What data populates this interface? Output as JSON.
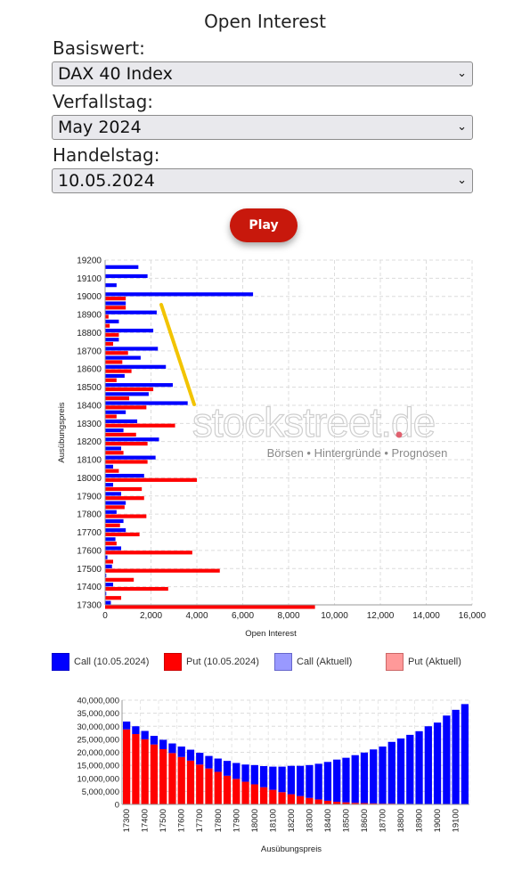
{
  "page": {
    "title": "Open Interest"
  },
  "form": {
    "underlying": {
      "label": "Basiswert:",
      "value": "DAX 40 Index"
    },
    "expiry": {
      "label": "Verfallstag:",
      "value": "May 2024"
    },
    "trade_date": {
      "label": "Handelstag:",
      "value": "10.05.2024"
    },
    "play_label": "Play"
  },
  "watermark": {
    "brand": "stockstreet.de",
    "tagline": "Börsen • Hintergründe • Prognosen"
  },
  "legend": [
    {
      "label": "Call (10.05.2024)",
      "color": "#0000ff"
    },
    {
      "label": "Put (10.05.2024)",
      "color": "#ff0000"
    },
    {
      "label": "Call (Aktuell)",
      "color": "#9999ff"
    },
    {
      "label": "Put (Aktuell)",
      "color": "#ff9999"
    }
  ],
  "chart_data": [
    {
      "type": "bar",
      "orientation": "horizontal",
      "xlabel": "Open Interest",
      "ylabel": "Ausübungspreis",
      "xlim": [
        0,
        16000
      ],
      "xticks": [
        0,
        2000,
        4000,
        6000,
        8000,
        10000,
        12000,
        14000,
        16000
      ],
      "ylim": [
        17300,
        19200
      ],
      "yticks": [
        17300,
        17400,
        17500,
        17600,
        17700,
        17800,
        17900,
        18000,
        18100,
        18200,
        18300,
        18400,
        18500,
        18600,
        18700,
        18800,
        18900,
        19000,
        19100,
        19200
      ],
      "grid": true,
      "strikes": [
        17300,
        17350,
        17400,
        17450,
        17500,
        17550,
        17600,
        17650,
        17700,
        17750,
        17800,
        17850,
        17900,
        17950,
        18000,
        18050,
        18100,
        18150,
        18200,
        18250,
        18300,
        18350,
        18400,
        18450,
        18500,
        18550,
        18600,
        18650,
        18700,
        18750,
        18800,
        18850,
        18900,
        18950,
        19000,
        19050,
        19100,
        19150
      ],
      "series": [
        {
          "name": "Call (10.05.2024)",
          "color": "#0000ff",
          "values": [
            250,
            50,
            350,
            50,
            300,
            100,
            700,
            450,
            900,
            800,
            500,
            900,
            700,
            350,
            1700,
            350,
            2200,
            700,
            2350,
            800,
            1400,
            900,
            3600,
            1900,
            2950,
            850,
            2650,
            1550,
            2300,
            600,
            2100,
            600,
            2250,
            900,
            6450,
            500,
            1850,
            1450
          ]
        },
        {
          "name": "Put (10.05.2024)",
          "color": "#ff0000",
          "values": [
            9150,
            700,
            2750,
            1250,
            5000,
            350,
            3800,
            500,
            1500,
            650,
            1800,
            850,
            1700,
            1600,
            4000,
            600,
            1850,
            800,
            1850,
            1350,
            3050,
            500,
            1800,
            1050,
            2100,
            500,
            1150,
            750,
            1000,
            350,
            600,
            200,
            150,
            900,
            900,
            0,
            0,
            0
          ]
        }
      ]
    },
    {
      "type": "bar",
      "stacked": true,
      "xlabel": "Ausübungspreis",
      "ylabel": "",
      "ylim": [
        0,
        40000000
      ],
      "yticks": [
        0,
        5000000,
        10000000,
        15000000,
        20000000,
        25000000,
        30000000,
        35000000,
        40000000
      ],
      "ytick_labels": [
        "0",
        "5,000,000",
        "10,000,000",
        "15,000,000",
        "20,000,000",
        "25,000,000",
        "30,000,000",
        "35,000,000",
        "40,000,000"
      ],
      "grid": true,
      "categories": [
        17300,
        17350,
        17400,
        17450,
        17500,
        17550,
        17600,
        17650,
        17700,
        17750,
        17800,
        17850,
        17900,
        17950,
        18000,
        18050,
        18100,
        18150,
        18200,
        18250,
        18300,
        18350,
        18400,
        18450,
        18500,
        18550,
        18600,
        18650,
        18700,
        18750,
        18800,
        18850,
        18900,
        18950,
        19000,
        19050,
        19100,
        19150
      ],
      "tick_labels": [
        "17300",
        "17400",
        "17500",
        "17600",
        "17700",
        "17800",
        "17900",
        "18000",
        "18100",
        "18200",
        "18300",
        "18400",
        "18500",
        "18600",
        "18700",
        "18800",
        "18900",
        "19000",
        "19100"
      ],
      "series": [
        {
          "name": "Put (10.05.2024)",
          "color": "#ff0000",
          "values": [
            28800,
            27000,
            25000,
            23000,
            21200,
            19700,
            18200,
            16800,
            15300,
            13800,
            12500,
            11000,
            9800,
            8700,
            7700,
            6600,
            5600,
            4700,
            3900,
            3200,
            2500,
            1900,
            1400,
            1000,
            800,
            600,
            500,
            400,
            300,
            300,
            200,
            200,
            100,
            100,
            100,
            100,
            100,
            100
          ]
        },
        {
          "name": "Call (10.05.2024)",
          "color": "#0000ff",
          "values": [
            3000,
            3000,
            3200,
            3300,
            3600,
            3700,
            4000,
            4200,
            4500,
            4800,
            5100,
            5700,
            6100,
            6600,
            7400,
            8100,
            8900,
            9800,
            10900,
            11600,
            12600,
            13700,
            14900,
            16200,
            17100,
            18300,
            19400,
            20700,
            21900,
            23700,
            25100,
            26500,
            28000,
            29900,
            31300,
            34000,
            36200,
            38400
          ]
        }
      ],
      "units": "thousands (values × 1000)"
    }
  ]
}
